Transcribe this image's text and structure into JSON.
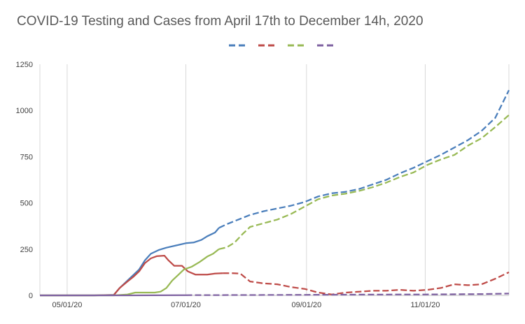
{
  "chart_data": {
    "type": "line",
    "title": "COVID-19 Testing and Cases from April 17th to December 14h, 2020",
    "xlabel": "",
    "ylabel": "",
    "ylim": [
      0,
      1250
    ],
    "y_ticks": [
      0,
      250,
      500,
      750,
      1000,
      1250
    ],
    "x_range": [
      "2020-04-17",
      "2020-12-14"
    ],
    "x_ticks": [
      {
        "date": "2020-05-01",
        "label": "05/01/20"
      },
      {
        "date": "2020-07-01",
        "label": "07/01/20"
      },
      {
        "date": "2020-09-01",
        "label": "09/01/20"
      },
      {
        "date": "2020-11-01",
        "label": "11/01/20"
      }
    ],
    "grid": "vertical",
    "legend_position": "top",
    "series": [
      {
        "color": "#4a7ebb",
        "points": [
          [
            "2020-04-17",
            0
          ],
          [
            "2020-05-01",
            0
          ],
          [
            "2020-05-15",
            0
          ],
          [
            "2020-05-25",
            3
          ],
          [
            "2020-05-28",
            40
          ],
          [
            "2020-06-01",
            80
          ],
          [
            "2020-06-04",
            110
          ],
          [
            "2020-06-07",
            140
          ],
          [
            "2020-06-10",
            190
          ],
          [
            "2020-06-13",
            225
          ],
          [
            "2020-06-17",
            245
          ],
          [
            "2020-06-21",
            258
          ],
          [
            "2020-06-26",
            270
          ],
          [
            "2020-07-01",
            282
          ],
          [
            "2020-07-05",
            286
          ],
          [
            "2020-07-09",
            300
          ],
          [
            "2020-07-12",
            320
          ],
          [
            "2020-07-16",
            340
          ],
          [
            "2020-07-18",
            365
          ],
          [
            "2020-07-22",
            385
          ],
          [
            "2020-07-28",
            410
          ],
          [
            "2020-08-03",
            435
          ],
          [
            "2020-08-10",
            455
          ],
          [
            "2020-08-17",
            470
          ],
          [
            "2020-08-24",
            485
          ],
          [
            "2020-08-31",
            505
          ],
          [
            "2020-09-07",
            535
          ],
          [
            "2020-09-14",
            552
          ],
          [
            "2020-09-21",
            560
          ],
          [
            "2020-09-28",
            575
          ],
          [
            "2020-10-05",
            600
          ],
          [
            "2020-10-12",
            625
          ],
          [
            "2020-10-19",
            660
          ],
          [
            "2020-10-26",
            690
          ],
          [
            "2020-11-02",
            725
          ],
          [
            "2020-11-09",
            760
          ],
          [
            "2020-11-16",
            800
          ],
          [
            "2020-11-23",
            840
          ],
          [
            "2020-11-30",
            890
          ],
          [
            "2020-12-07",
            960
          ],
          [
            "2020-12-14",
            1110
          ]
        ]
      },
      {
        "color": "#be4b48",
        "points": [
          [
            "2020-04-17",
            0
          ],
          [
            "2020-05-15",
            0
          ],
          [
            "2020-05-25",
            2
          ],
          [
            "2020-05-28",
            40
          ],
          [
            "2020-06-01",
            75
          ],
          [
            "2020-06-04",
            100
          ],
          [
            "2020-06-07",
            130
          ],
          [
            "2020-06-10",
            175
          ],
          [
            "2020-06-13",
            200
          ],
          [
            "2020-06-16",
            212
          ],
          [
            "2020-06-20",
            215
          ],
          [
            "2020-06-22",
            190
          ],
          [
            "2020-06-25",
            160
          ],
          [
            "2020-06-29",
            160
          ],
          [
            "2020-07-02",
            130
          ],
          [
            "2020-07-06",
            112
          ],
          [
            "2020-07-12",
            112
          ],
          [
            "2020-07-16",
            118
          ],
          [
            "2020-07-20",
            120
          ],
          [
            "2020-07-25",
            120
          ],
          [
            "2020-07-29",
            118
          ],
          [
            "2020-08-03",
            75
          ],
          [
            "2020-08-10",
            65
          ],
          [
            "2020-08-17",
            60
          ],
          [
            "2020-08-24",
            45
          ],
          [
            "2020-08-31",
            35
          ],
          [
            "2020-09-07",
            15
          ],
          [
            "2020-09-14",
            5
          ],
          [
            "2020-09-21",
            15
          ],
          [
            "2020-09-28",
            20
          ],
          [
            "2020-10-05",
            25
          ],
          [
            "2020-10-12",
            25
          ],
          [
            "2020-10-19",
            30
          ],
          [
            "2020-10-26",
            25
          ],
          [
            "2020-11-02",
            30
          ],
          [
            "2020-11-09",
            40
          ],
          [
            "2020-11-16",
            60
          ],
          [
            "2020-11-23",
            55
          ],
          [
            "2020-11-30",
            60
          ],
          [
            "2020-12-07",
            90
          ],
          [
            "2020-12-14",
            125
          ]
        ]
      },
      {
        "color": "#98b954",
        "points": [
          [
            "2020-04-17",
            0
          ],
          [
            "2020-05-25",
            0
          ],
          [
            "2020-06-01",
            5
          ],
          [
            "2020-06-05",
            15
          ],
          [
            "2020-06-15",
            15
          ],
          [
            "2020-06-18",
            20
          ],
          [
            "2020-06-21",
            40
          ],
          [
            "2020-06-24",
            80
          ],
          [
            "2020-06-27",
            110
          ],
          [
            "2020-06-30",
            140
          ],
          [
            "2020-07-04",
            155
          ],
          [
            "2020-07-08",
            180
          ],
          [
            "2020-07-12",
            210
          ],
          [
            "2020-07-15",
            225
          ],
          [
            "2020-07-18",
            250
          ],
          [
            "2020-07-22",
            260
          ],
          [
            "2020-07-26",
            285
          ],
          [
            "2020-07-30",
            330
          ],
          [
            "2020-08-03",
            370
          ],
          [
            "2020-08-10",
            390
          ],
          [
            "2020-08-17",
            410
          ],
          [
            "2020-08-24",
            440
          ],
          [
            "2020-08-31",
            480
          ],
          [
            "2020-09-07",
            520
          ],
          [
            "2020-09-14",
            540
          ],
          [
            "2020-09-21",
            550
          ],
          [
            "2020-09-28",
            565
          ],
          [
            "2020-10-05",
            585
          ],
          [
            "2020-10-12",
            610
          ],
          [
            "2020-10-19",
            640
          ],
          [
            "2020-10-26",
            665
          ],
          [
            "2020-11-02",
            705
          ],
          [
            "2020-11-09",
            735
          ],
          [
            "2020-11-16",
            760
          ],
          [
            "2020-11-23",
            810
          ],
          [
            "2020-11-30",
            850
          ],
          [
            "2020-12-07",
            910
          ],
          [
            "2020-12-14",
            975
          ]
        ]
      },
      {
        "color": "#7d60a0",
        "points": [
          [
            "2020-04-17",
            0
          ],
          [
            "2020-06-01",
            0
          ],
          [
            "2020-07-01",
            1
          ],
          [
            "2020-08-01",
            2
          ],
          [
            "2020-09-01",
            3
          ],
          [
            "2020-10-01",
            4
          ],
          [
            "2020-11-01",
            5
          ],
          [
            "2020-12-01",
            7
          ],
          [
            "2020-12-14",
            10
          ]
        ]
      }
    ]
  }
}
